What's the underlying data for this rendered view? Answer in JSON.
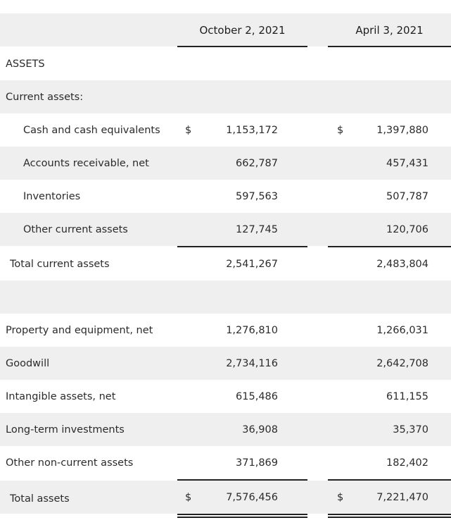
{
  "columns": [
    "October 2, 2021",
    "April 3, 2021"
  ],
  "sections": {
    "assets_heading": "ASSETS",
    "current_assets_heading": "Current assets:"
  },
  "current_assets": [
    {
      "label": "Cash and cash equivalents",
      "cur1": "$",
      "v1": "1,153,172",
      "cur2": "$",
      "v2": "1,397,880"
    },
    {
      "label": "Accounts receivable, net",
      "v1": "662,787",
      "v2": "457,431"
    },
    {
      "label": "Inventories",
      "v1": "597,563",
      "v2": "507,787"
    },
    {
      "label": "Other current assets",
      "v1": "127,745",
      "v2": "120,706"
    }
  ],
  "total_current_assets": {
    "label": "Total current assets",
    "v1": "2,541,267",
    "v2": "2,483,804"
  },
  "noncurrent_assets": [
    {
      "label": "Property and equipment, net",
      "v1": "1,276,810",
      "v2": "1,266,031"
    },
    {
      "label": "Goodwill",
      "v1": "2,734,116",
      "v2": "2,642,708"
    },
    {
      "label": "Intangible assets, net",
      "v1": "615,486",
      "v2": "611,155"
    },
    {
      "label": "Long-term investments",
      "v1": "36,908",
      "v2": "35,370"
    },
    {
      "label": "Other non-current assets",
      "v1": "371,869",
      "v2": "182,402"
    }
  ],
  "total_assets": {
    "label": "Total assets",
    "cur1": "$",
    "v1": "7,576,456",
    "cur2": "$",
    "v2": "7,221,470"
  }
}
